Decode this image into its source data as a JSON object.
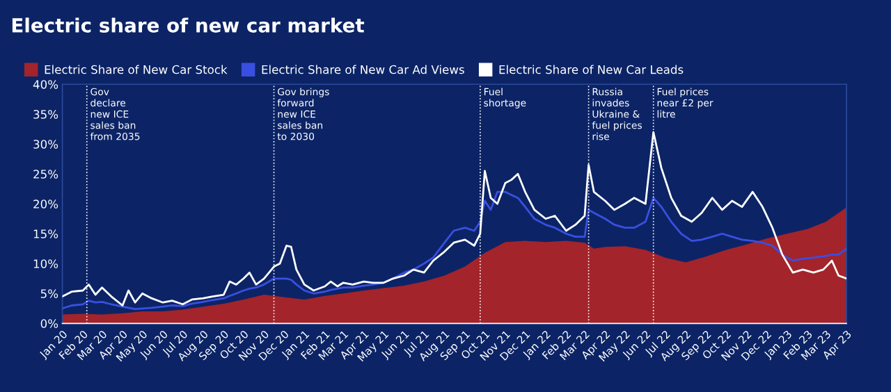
{
  "chart_data": {
    "type": "area",
    "title": "Electric share of new car market",
    "xlim": [
      "2020-01-01",
      "2023-04-01"
    ],
    "xticks": [
      {
        "value": "2020-01-01",
        "label": "Jan 20"
      },
      {
        "value": "2020-02-01",
        "label": "Feb 20"
      },
      {
        "value": "2020-03-01",
        "label": "Mar 20"
      },
      {
        "value": "2020-04-01",
        "label": "Apr 20"
      },
      {
        "value": "2020-05-01",
        "label": "May 20"
      },
      {
        "value": "2020-06-01",
        "label": "Jun 20"
      },
      {
        "value": "2020-07-01",
        "label": "Jul 20"
      },
      {
        "value": "2020-08-01",
        "label": "Aug 20"
      },
      {
        "value": "2020-09-01",
        "label": "Sep 20"
      },
      {
        "value": "2020-10-01",
        "label": "Oct 20"
      },
      {
        "value": "2020-11-01",
        "label": "Nov 20"
      },
      {
        "value": "2020-12-01",
        "label": "Dec 20"
      },
      {
        "value": "2021-01-01",
        "label": "Jan 21"
      },
      {
        "value": "2021-02-01",
        "label": "Feb 21"
      },
      {
        "value": "2021-03-01",
        "label": "Mar 21"
      },
      {
        "value": "2021-04-01",
        "label": "Apr 21"
      },
      {
        "value": "2021-05-01",
        "label": "May 21"
      },
      {
        "value": "2021-06-01",
        "label": "Jun 21"
      },
      {
        "value": "2021-07-01",
        "label": "Jul 21"
      },
      {
        "value": "2021-08-01",
        "label": "Aug 21"
      },
      {
        "value": "2021-09-01",
        "label": "Sep 21"
      },
      {
        "value": "2021-10-01",
        "label": "Oct 21"
      },
      {
        "value": "2021-11-01",
        "label": "Nov 21"
      },
      {
        "value": "2021-12-01",
        "label": "Dec 21"
      },
      {
        "value": "2022-01-01",
        "label": "Jan 22"
      },
      {
        "value": "2022-02-01",
        "label": "Feb 22"
      },
      {
        "value": "2022-03-01",
        "label": "Mar 22"
      },
      {
        "value": "2022-04-01",
        "label": "Apr 22"
      },
      {
        "value": "2022-05-01",
        "label": "May 22"
      },
      {
        "value": "2022-06-01",
        "label": "Jun 22"
      },
      {
        "value": "2022-07-01",
        "label": "Jul 22"
      },
      {
        "value": "2022-08-01",
        "label": "Aug 22"
      },
      {
        "value": "2022-09-01",
        "label": "Sep 22"
      },
      {
        "value": "2022-10-01",
        "label": "Oct 22"
      },
      {
        "value": "2022-11-01",
        "label": "Nov 22"
      },
      {
        "value": "2022-12-01",
        "label": "Dec 22"
      },
      {
        "value": "2023-01-01",
        "label": "Jan 23"
      },
      {
        "value": "2023-02-01",
        "label": "Feb 23"
      },
      {
        "value": "2023-03-01",
        "label": "Mar 23"
      },
      {
        "value": "2023-04-01",
        "label": "Apr 23"
      }
    ],
    "ylim": [
      0,
      40
    ],
    "yticks": [
      {
        "value": 0,
        "label": "0%"
      },
      {
        "value": 5,
        "label": "5%"
      },
      {
        "value": 10,
        "label": "10%"
      },
      {
        "value": 15,
        "label": "15%"
      },
      {
        "value": 20,
        "label": "20%"
      },
      {
        "value": 25,
        "label": "25%"
      },
      {
        "value": 30,
        "label": "30%"
      },
      {
        "value": 35,
        "label": "35%"
      },
      {
        "value": 40,
        "label": "40%"
      }
    ],
    "grid": false,
    "legend": "top left",
    "series": [
      {
        "name": "Electric Share of New Car Stock",
        "color": "#a3242a",
        "x": [
          "2020-01-01",
          "2020-02-01",
          "2020-03-01",
          "2020-04-01",
          "2020-05-01",
          "2020-06-01",
          "2020-07-01",
          "2020-08-01",
          "2020-09-01",
          "2020-10-01",
          "2020-11-01",
          "2020-12-01",
          "2021-01-01",
          "2021-02-01",
          "2021-03-01",
          "2021-04-01",
          "2021-05-01",
          "2021-06-01",
          "2021-07-01",
          "2021-08-01",
          "2021-09-01",
          "2021-10-01",
          "2021-11-01",
          "2021-12-01",
          "2022-01-01",
          "2022-02-01",
          "2022-03-01",
          "2022-03-15",
          "2022-04-01",
          "2022-05-01",
          "2022-06-01",
          "2022-07-01",
          "2022-08-01",
          "2022-09-01",
          "2022-10-01",
          "2022-11-01",
          "2022-12-01",
          "2023-01-01",
          "2023-02-01",
          "2023-03-01",
          "2023-04-01"
        ],
        "values": [
          1.5,
          1.6,
          1.5,
          1.7,
          2.0,
          2.0,
          2.3,
          2.8,
          3.3,
          4.0,
          4.8,
          4.4,
          4.0,
          4.6,
          5.0,
          5.5,
          5.9,
          6.3,
          7.0,
          8.0,
          9.5,
          11.8,
          13.6,
          13.8,
          13.6,
          13.8,
          13.5,
          12.5,
          12.8,
          12.9,
          12.3,
          11.0,
          10.2,
          11.2,
          12.3,
          13.2,
          14.2,
          15.0,
          15.8,
          17.0,
          19.4
        ]
      },
      {
        "name": "Electric Share of New Car Ad Views",
        "type": "line",
        "color": "#3a4fe0",
        "x": [
          "2020-01-01",
          "2020-01-15",
          "2020-02-01",
          "2020-02-10",
          "2020-02-20",
          "2020-03-01",
          "2020-03-15",
          "2020-04-01",
          "2020-04-10",
          "2020-04-20",
          "2020-05-01",
          "2020-05-15",
          "2020-06-01",
          "2020-06-15",
          "2020-07-01",
          "2020-07-15",
          "2020-08-01",
          "2020-08-15",
          "2020-09-01",
          "2020-09-10",
          "2020-09-20",
          "2020-10-01",
          "2020-10-10",
          "2020-10-20",
          "2020-11-01",
          "2020-11-16",
          "2020-11-25",
          "2020-12-05",
          "2020-12-12",
          "2020-12-20",
          "2021-01-01",
          "2021-01-15",
          "2021-02-01",
          "2021-02-10",
          "2021-02-20",
          "2021-03-01",
          "2021-03-15",
          "2021-04-01",
          "2021-04-15",
          "2021-05-01",
          "2021-05-15",
          "2021-06-01",
          "2021-06-15",
          "2021-07-01",
          "2021-07-15",
          "2021-08-01",
          "2021-08-15",
          "2021-09-01",
          "2021-09-15",
          "2021-09-24",
          "2021-10-01",
          "2021-10-10",
          "2021-10-20",
          "2021-11-01",
          "2021-11-10",
          "2021-11-20",
          "2021-12-01",
          "2021-12-15",
          "2022-01-01",
          "2022-01-15",
          "2022-02-01",
          "2022-02-15",
          "2022-03-01",
          "2022-03-07",
          "2022-03-15",
          "2022-04-01",
          "2022-04-15",
          "2022-05-01",
          "2022-05-15",
          "2022-06-01",
          "2022-06-13",
          "2022-06-25",
          "2022-07-10",
          "2022-07-25",
          "2022-08-10",
          "2022-08-25",
          "2022-09-10",
          "2022-09-25",
          "2022-10-10",
          "2022-10-25",
          "2022-11-10",
          "2022-11-25",
          "2022-12-10",
          "2022-12-25",
          "2023-01-10",
          "2023-01-25",
          "2023-02-10",
          "2023-02-25",
          "2023-03-10",
          "2023-03-20",
          "2023-04-01"
        ],
        "values": [
          2.5,
          3.0,
          3.2,
          3.8,
          3.5,
          3.6,
          3.2,
          2.8,
          2.6,
          2.4,
          2.5,
          2.6,
          2.8,
          3.0,
          2.9,
          3.3,
          3.6,
          3.9,
          4.2,
          4.6,
          5.0,
          5.5,
          5.8,
          6.0,
          6.5,
          7.5,
          7.5,
          7.5,
          7.3,
          6.5,
          5.5,
          5.0,
          5.3,
          5.6,
          5.8,
          6.0,
          6.0,
          6.3,
          6.5,
          6.8,
          7.5,
          8.5,
          9.0,
          10.0,
          11.0,
          13.5,
          15.5,
          16.0,
          15.5,
          17.0,
          20.5,
          19.0,
          22.0,
          22.0,
          21.5,
          21.0,
          19.5,
          17.5,
          16.5,
          16.0,
          15.0,
          14.5,
          14.5,
          19.0,
          18.5,
          17.5,
          16.5,
          16.0,
          16.0,
          17.0,
          21.0,
          19.5,
          17.0,
          15.0,
          13.8,
          14.0,
          14.5,
          15.0,
          14.5,
          14.0,
          13.8,
          13.5,
          13.0,
          11.5,
          10.5,
          10.8,
          11.0,
          11.2,
          11.5,
          11.5,
          12.5
        ]
      },
      {
        "name": "Electric Share of New Car Leads",
        "type": "line",
        "color": "#ffffff",
        "x": [
          "2020-01-01",
          "2020-01-15",
          "2020-02-01",
          "2020-02-10",
          "2020-02-20",
          "2020-03-01",
          "2020-03-15",
          "2020-04-01",
          "2020-04-10",
          "2020-04-20",
          "2020-05-01",
          "2020-05-15",
          "2020-06-01",
          "2020-06-15",
          "2020-07-01",
          "2020-07-15",
          "2020-08-01",
          "2020-08-15",
          "2020-09-01",
          "2020-09-10",
          "2020-09-20",
          "2020-10-01",
          "2020-10-10",
          "2020-10-20",
          "2020-11-01",
          "2020-11-16",
          "2020-11-25",
          "2020-12-05",
          "2020-12-12",
          "2020-12-20",
          "2021-01-01",
          "2021-01-15",
          "2021-02-01",
          "2021-02-10",
          "2021-02-20",
          "2021-03-01",
          "2021-03-15",
          "2021-04-01",
          "2021-04-15",
          "2021-05-01",
          "2021-05-15",
          "2021-06-01",
          "2021-06-15",
          "2021-07-01",
          "2021-07-15",
          "2021-08-01",
          "2021-08-15",
          "2021-09-01",
          "2021-09-15",
          "2021-09-24",
          "2021-10-01",
          "2021-10-10",
          "2021-10-20",
          "2021-11-01",
          "2021-11-10",
          "2021-11-20",
          "2021-12-01",
          "2021-12-15",
          "2022-01-01",
          "2022-01-15",
          "2022-02-01",
          "2022-02-15",
          "2022-03-01",
          "2022-03-07",
          "2022-03-15",
          "2022-04-01",
          "2022-04-15",
          "2022-05-01",
          "2022-05-15",
          "2022-06-01",
          "2022-06-13",
          "2022-06-25",
          "2022-07-10",
          "2022-07-25",
          "2022-08-10",
          "2022-08-25",
          "2022-09-10",
          "2022-09-25",
          "2022-10-10",
          "2022-10-25",
          "2022-11-10",
          "2022-11-25",
          "2022-12-10",
          "2022-12-25",
          "2023-01-10",
          "2023-01-25",
          "2023-02-10",
          "2023-02-25",
          "2023-03-10",
          "2023-03-20",
          "2023-04-01"
        ],
        "values": [
          4.5,
          5.3,
          5.5,
          6.5,
          4.8,
          6.0,
          4.5,
          3.0,
          5.5,
          3.5,
          5.0,
          4.2,
          3.5,
          3.8,
          3.2,
          4.0,
          4.2,
          4.5,
          4.8,
          7.0,
          6.5,
          7.5,
          8.5,
          6.5,
          7.5,
          9.5,
          10.0,
          13.0,
          12.8,
          9.0,
          6.5,
          5.5,
          6.2,
          7.0,
          6.2,
          6.8,
          6.5,
          7.0,
          6.8,
          6.8,
          7.5,
          8.0,
          9.0,
          8.5,
          10.5,
          12.0,
          13.5,
          14.0,
          13.0,
          15.0,
          25.5,
          21.0,
          20.0,
          23.5,
          24.0,
          25.0,
          22.0,
          19.0,
          17.5,
          18.0,
          15.5,
          16.5,
          18.0,
          26.5,
          22.0,
          20.5,
          19.0,
          20.0,
          21.0,
          20.0,
          32.0,
          26.0,
          21.0,
          18.0,
          17.0,
          18.5,
          21.0,
          19.0,
          20.5,
          19.5,
          22.0,
          19.5,
          16.0,
          11.5,
          8.5,
          9.0,
          8.5,
          9.0,
          10.5,
          8.0,
          7.5
        ]
      }
    ],
    "ref_lines": [
      {
        "axis": "x",
        "value": "2020-02-07",
        "label": "Gov\ndeclare\nnew ICE\nsales ban\nfrom 2035",
        "line_style": "dotted",
        "color": "#ffffff"
      },
      {
        "axis": "x",
        "value": "2020-11-16",
        "label": "Gov brings\nforward\nnew ICE\nsales ban\nto 2030",
        "line_style": "dotted",
        "color": "#ffffff"
      },
      {
        "axis": "x",
        "value": "2021-09-24",
        "label": "Fuel\nshortage",
        "line_style": "dotted",
        "color": "#ffffff"
      },
      {
        "axis": "x",
        "value": "2022-03-07",
        "label": "Russia\ninvades\nUkraine &\nfuel prices\nrise",
        "line_style": "dotted",
        "color": "#ffffff"
      },
      {
        "axis": "x",
        "value": "2022-06-13",
        "label": "Fuel prices\nnear £2 per\nlitre",
        "line_style": "dotted",
        "color": "#ffffff"
      }
    ]
  }
}
